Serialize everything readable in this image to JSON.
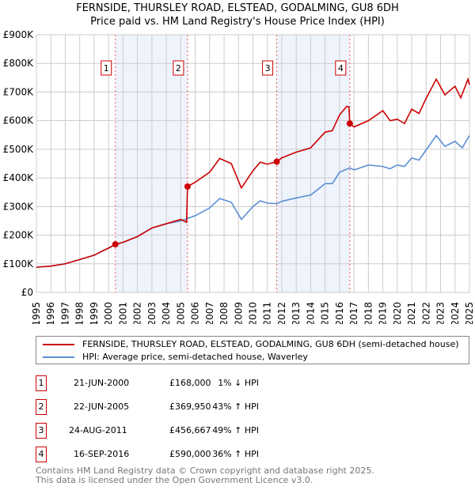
{
  "title": "FERNSIDE, THURSLEY ROAD, ELSTEAD, GODALMING, GU8 6DH",
  "subtitle": "Price paid vs. HM Land Registry's House Price Index (HPI)",
  "chart_data": {
    "type": "line",
    "ylim": [
      0,
      900000
    ],
    "xlim": [
      1995,
      2025
    ],
    "y_ticks": [
      0,
      100000,
      200000,
      300000,
      400000,
      500000,
      600000,
      700000,
      800000,
      900000
    ],
    "y_tick_labels": [
      "£0",
      "£100K",
      "£200K",
      "£300K",
      "£400K",
      "£500K",
      "£600K",
      "£700K",
      "£800K",
      "£900K"
    ],
    "x_ticks": [
      1995,
      1996,
      1997,
      1998,
      1999,
      2000,
      2001,
      2002,
      2003,
      2004,
      2005,
      2006,
      2007,
      2008,
      2009,
      2010,
      2011,
      2012,
      2013,
      2014,
      2015,
      2016,
      2017,
      2018,
      2019,
      2020,
      2021,
      2022,
      2023,
      2024,
      2025
    ],
    "grid": true,
    "colors": {
      "property": "#cc0000",
      "hpi": "#5b8fd4",
      "shade": "#eef3fc",
      "marker": "#cc0000"
    },
    "shaded_ranges": [
      [
        2000.47,
        2005.47
      ],
      [
        2011.65,
        2016.71
      ]
    ],
    "series": [
      {
        "name": "FERNSIDE, THURSLEY ROAD, ELSTEAD, GODALMING, GU8 6DH (semi-detached house)",
        "key": "property",
        "x": [
          1995,
          1996,
          1997,
          1998,
          1999,
          2000,
          2000.47,
          2001,
          2002,
          2003,
          2004,
          2005,
          2005.4,
          2005.47,
          2006,
          2007,
          2007.7,
          2008.5,
          2009.2,
          2010,
          2010.5,
          2011,
          2011.65,
          2012,
          2013,
          2014,
          2015,
          2015.5,
          2016,
          2016.5,
          2016.65,
          2016.71,
          2017,
          2018,
          2019,
          2019.5,
          2020,
          2020.5,
          2021,
          2021.5,
          2022,
          2022.7,
          2023.3,
          2024,
          2024.4,
          2024.9,
          2025
        ],
        "y": [
          88000,
          92000,
          100000,
          115000,
          130000,
          155000,
          168000,
          175000,
          195000,
          225000,
          240000,
          255000,
          245000,
          369950,
          385000,
          420000,
          468000,
          450000,
          365000,
          425000,
          455000,
          448000,
          456667,
          470000,
          490000,
          505000,
          560000,
          565000,
          620000,
          650000,
          648000,
          590000,
          578000,
          600000,
          635000,
          600000,
          605000,
          590000,
          640000,
          625000,
          678000,
          745000,
          690000,
          720000,
          680000,
          745000,
          725000
        ]
      },
      {
        "name": "HPI: Average price, semi-detached house, Waverley",
        "key": "hpi",
        "x": [
          1995,
          1996,
          1997,
          1998,
          1999,
          2000,
          2000.47,
          2001,
          2002,
          2003,
          2004,
          2005,
          2005.47,
          2006,
          2007,
          2007.7,
          2008.5,
          2009.2,
          2010,
          2010.5,
          2011,
          2011.65,
          2012,
          2013,
          2014,
          2015,
          2015.5,
          2016,
          2016.71,
          2017,
          2018,
          2019,
          2019.5,
          2020,
          2020.5,
          2021,
          2021.5,
          2022,
          2022.7,
          2023.3,
          2024,
          2024.5,
          2025
        ],
        "y": [
          88000,
          92000,
          100000,
          115000,
          130000,
          155000,
          168000,
          175000,
          195000,
          225000,
          240000,
          250000,
          258000,
          268000,
          295000,
          328000,
          315000,
          255000,
          300000,
          320000,
          312000,
          310000,
          318000,
          330000,
          340000,
          380000,
          380000,
          420000,
          435000,
          428000,
          445000,
          440000,
          432000,
          445000,
          440000,
          470000,
          462000,
          498000,
          548000,
          510000,
          528000,
          505000,
          548000
        ]
      }
    ],
    "sales": [
      {
        "label": "1",
        "x": 2000.47,
        "y": 168000,
        "date": "21-JUN-2000",
        "price": "£168,000",
        "hpi": "1% ↓ HPI"
      },
      {
        "label": "2",
        "x": 2005.47,
        "y": 369950,
        "date": "22-JUN-2005",
        "price": "£369,950",
        "hpi": "43% ↑ HPI"
      },
      {
        "label": "3",
        "x": 2011.65,
        "y": 456667,
        "date": "24-AUG-2011",
        "price": "£456,667",
        "hpi": "49% ↑ HPI"
      },
      {
        "label": "4",
        "x": 2016.71,
        "y": 590000,
        "date": "16-SEP-2016",
        "price": "£590,000",
        "hpi": "36% ↑ HPI"
      }
    ]
  },
  "legend": {
    "property": "FERNSIDE, THURSLEY ROAD, ELSTEAD, GODALMING, GU8 6DH (semi-detached house)",
    "hpi": "HPI: Average price, semi-detached house, Waverley"
  },
  "footer": {
    "line1": "Contains HM Land Registry data © Crown copyright and database right 2025.",
    "line2": "This data is licensed under the Open Government Licence v3.0."
  }
}
